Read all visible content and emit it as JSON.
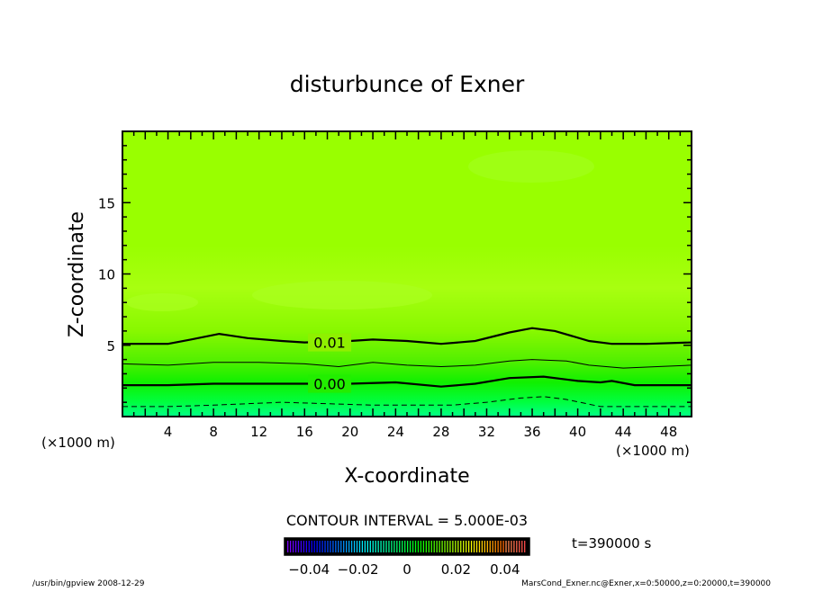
{
  "chart_data": {
    "type": "contour",
    "title": "disturbunce of Exner",
    "xlabel": "X-coordinate",
    "ylabel": "Z-coordinate",
    "x_unit": "(×1000 m)",
    "y_unit": "(×1000 m)",
    "xlim": [
      0,
      50
    ],
    "ylim": [
      0,
      20
    ],
    "xticks": [
      4,
      8,
      12,
      16,
      20,
      24,
      28,
      32,
      36,
      40,
      44,
      48
    ],
    "yticks": [
      5,
      10,
      15
    ],
    "contour_interval_label": "CONTOUR INTERVAL = 5.000E-03",
    "contours": [
      {
        "level": 0.01,
        "label": "0.01",
        "style": "thick",
        "points": [
          [
            0,
            5.1
          ],
          [
            4,
            5.1
          ],
          [
            6,
            5.4
          ],
          [
            8.5,
            5.8
          ],
          [
            11,
            5.5
          ],
          [
            14,
            5.3
          ],
          [
            16,
            5.2
          ],
          [
            20,
            5.3
          ],
          [
            22,
            5.4
          ],
          [
            25,
            5.3
          ],
          [
            28,
            5.1
          ],
          [
            31,
            5.3
          ],
          [
            34,
            5.9
          ],
          [
            36,
            6.2
          ],
          [
            38,
            6.0
          ],
          [
            41,
            5.3
          ],
          [
            43,
            5.1
          ],
          [
            46,
            5.1
          ],
          [
            50,
            5.2
          ]
        ]
      },
      {
        "level": 0.005,
        "label": "",
        "style": "thin",
        "points": [
          [
            0,
            3.7
          ],
          [
            4,
            3.6
          ],
          [
            8,
            3.8
          ],
          [
            12,
            3.8
          ],
          [
            16,
            3.7
          ],
          [
            19,
            3.5
          ],
          [
            22,
            3.8
          ],
          [
            25,
            3.6
          ],
          [
            28,
            3.5
          ],
          [
            31,
            3.6
          ],
          [
            34,
            3.9
          ],
          [
            36,
            4.0
          ],
          [
            39,
            3.9
          ],
          [
            41,
            3.6
          ],
          [
            44,
            3.4
          ],
          [
            47,
            3.5
          ],
          [
            50,
            3.6
          ]
        ]
      },
      {
        "level": 0.0,
        "label": "0.00",
        "style": "thick",
        "points": [
          [
            0,
            2.2
          ],
          [
            4,
            2.2
          ],
          [
            8,
            2.3
          ],
          [
            12,
            2.3
          ],
          [
            16,
            2.3
          ],
          [
            20,
            2.3
          ],
          [
            24,
            2.4
          ],
          [
            28,
            2.1
          ],
          [
            31,
            2.3
          ],
          [
            34,
            2.7
          ],
          [
            37,
            2.8
          ],
          [
            40,
            2.5
          ],
          [
            42,
            2.4
          ],
          [
            43,
            2.5
          ],
          [
            45,
            2.2
          ],
          [
            50,
            2.2
          ]
        ]
      },
      {
        "level": -0.005,
        "label": "",
        "style": "dashed",
        "points": [
          [
            0,
            0.7
          ],
          [
            4,
            0.7
          ],
          [
            8,
            0.8
          ],
          [
            11,
            0.9
          ],
          [
            14,
            1.0
          ],
          [
            18,
            0.9
          ],
          [
            22,
            0.8
          ],
          [
            26,
            0.8
          ],
          [
            29,
            0.8
          ],
          [
            32,
            1.0
          ],
          [
            35,
            1.3
          ],
          [
            37,
            1.4
          ],
          [
            39,
            1.2
          ],
          [
            42,
            0.7
          ],
          [
            45,
            0.7
          ],
          [
            50,
            0.7
          ]
        ]
      }
    ],
    "colorbar": {
      "min": -0.05,
      "max": 0.05,
      "tick_labels": [
        "−0.04",
        "−0.02",
        "0",
        "0.02",
        "0.04"
      ],
      "tick_values": [
        -0.04,
        -0.02,
        0,
        0.02,
        0.04
      ]
    }
  },
  "time_label": "t=390000  s",
  "footer": {
    "left": "/usr/bin/gpview   2008-12-29",
    "right": "MarsCond_Exner.nc@Exner,x=0:50000,z=0:20000,t=390000"
  }
}
